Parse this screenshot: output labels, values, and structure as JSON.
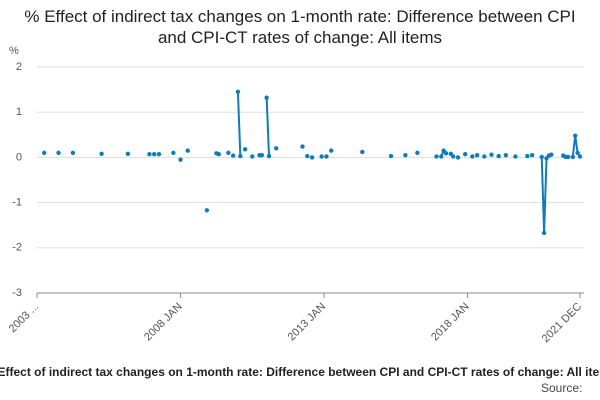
{
  "chart_data": {
    "type": "line",
    "title": "% Effect of indirect tax changes on 1-month rate: Difference between CPI and CPI-CT rates of change: All items",
    "y_label": "%",
    "source": "Source:",
    "color": "#0f7cb8",
    "grid": true,
    "ylim": [
      -3,
      2
    ],
    "yticks": [
      -3,
      -2,
      -1,
      0,
      1,
      2
    ],
    "categories": [
      "2003 ...",
      null,
      null,
      null,
      null,
      null,
      null,
      null,
      null,
      null,
      null,
      null,
      null,
      null,
      null,
      null,
      null,
      null,
      null,
      null,
      null,
      null,
      null,
      null,
      null,
      null,
      null,
      null,
      null,
      null,
      null,
      null,
      null,
      null,
      null,
      null,
      null,
      null,
      null,
      null,
      null,
      null,
      null,
      null,
      null,
      null,
      null,
      null,
      null,
      null,
      null,
      null,
      null,
      null,
      null,
      null,
      null,
      null,
      null,
      null,
      "2008 JAN",
      null,
      null,
      null,
      null,
      null,
      null,
      null,
      null,
      null,
      null,
      null,
      null,
      null,
      null,
      null,
      null,
      null,
      null,
      null,
      null,
      null,
      null,
      null,
      null,
      null,
      null,
      null,
      null,
      null,
      null,
      null,
      null,
      null,
      null,
      null,
      null,
      null,
      null,
      null,
      null,
      null,
      null,
      null,
      null,
      null,
      null,
      null,
      null,
      null,
      null,
      null,
      null,
      null,
      null,
      null,
      null,
      null,
      null,
      null,
      "2013 JAN",
      null,
      null,
      null,
      null,
      null,
      null,
      null,
      null,
      null,
      null,
      null,
      null,
      null,
      null,
      null,
      null,
      null,
      null,
      null,
      null,
      null,
      null,
      null,
      null,
      null,
      null,
      null,
      null,
      null,
      null,
      null,
      null,
      null,
      null,
      null,
      null,
      null,
      null,
      null,
      null,
      null,
      null,
      null,
      null,
      null,
      null,
      null,
      null,
      null,
      null,
      null,
      null,
      null,
      null,
      null,
      null,
      null,
      null,
      null,
      "2018 JAN",
      null,
      null,
      null,
      null,
      null,
      null,
      null,
      null,
      null,
      null,
      null,
      null,
      null,
      null,
      null,
      null,
      null,
      null,
      null,
      null,
      null,
      null,
      null,
      null,
      null,
      null,
      null,
      null,
      null,
      null,
      null,
      null,
      null,
      null,
      null,
      null,
      null,
      null,
      null,
      null,
      null,
      null,
      null,
      null,
      null,
      null,
      "2021 DEC"
    ],
    "values": [
      null,
      null,
      null,
      0.1,
      null,
      null,
      null,
      null,
      null,
      0.1,
      null,
      null,
      null,
      null,
      null,
      0.1,
      null,
      null,
      null,
      null,
      null,
      null,
      null,
      null,
      null,
      null,
      null,
      0.08,
      null,
      null,
      null,
      null,
      null,
      null,
      null,
      null,
      null,
      null,
      0.08,
      null,
      null,
      null,
      null,
      null,
      null,
      null,
      null,
      0.07,
      null,
      0.07,
      null,
      0.07,
      null,
      null,
      null,
      null,
      null,
      0.1,
      null,
      null,
      -0.05,
      null,
      null,
      0.15,
      null,
      null,
      null,
      null,
      null,
      null,
      null,
      -1.17,
      null,
      null,
      null,
      0.09,
      0.07,
      null,
      null,
      null,
      0.1,
      null,
      0.04,
      null,
      1.45,
      0.03,
      null,
      0.18,
      null,
      null,
      0.02,
      null,
      null,
      0.05,
      0.05,
      null,
      1.32,
      0.03,
      null,
      null,
      0.2,
      null,
      null,
      null,
      null,
      null,
      null,
      null,
      null,
      null,
      null,
      0.24,
      null,
      0.03,
      null,
      0,
      null,
      null,
      null,
      0.02,
      null,
      0.02,
      null,
      0.15,
      null,
      null,
      null,
      null,
      null,
      null,
      null,
      null,
      null,
      null,
      null,
      null,
      0.12,
      null,
      null,
      null,
      null,
      null,
      null,
      null,
      null,
      null,
      null,
      null,
      0.03,
      null,
      null,
      null,
      null,
      null,
      0.05,
      null,
      null,
      null,
      null,
      0.1,
      null,
      null,
      null,
      null,
      null,
      null,
      null,
      0.02,
      null,
      0.02,
      0.15,
      0.09,
      null,
      0.08,
      0.02,
      null,
      0,
      null,
      null,
      0.07,
      null,
      null,
      0.02,
      null,
      0.05,
      null,
      null,
      0.02,
      null,
      null,
      0.06,
      null,
      null,
      0.03,
      null,
      null,
      0.05,
      null,
      null,
      null,
      0.02,
      null,
      null,
      null,
      null,
      0.03,
      null,
      0.05,
      null,
      null,
      null,
      0.01,
      -1.67,
      -0.02,
      0.04,
      0.06,
      null,
      null,
      null,
      null,
      0.04,
      0.01,
      0.01,
      null,
      0.01,
      0.48,
      0.1,
      0.02
    ]
  }
}
